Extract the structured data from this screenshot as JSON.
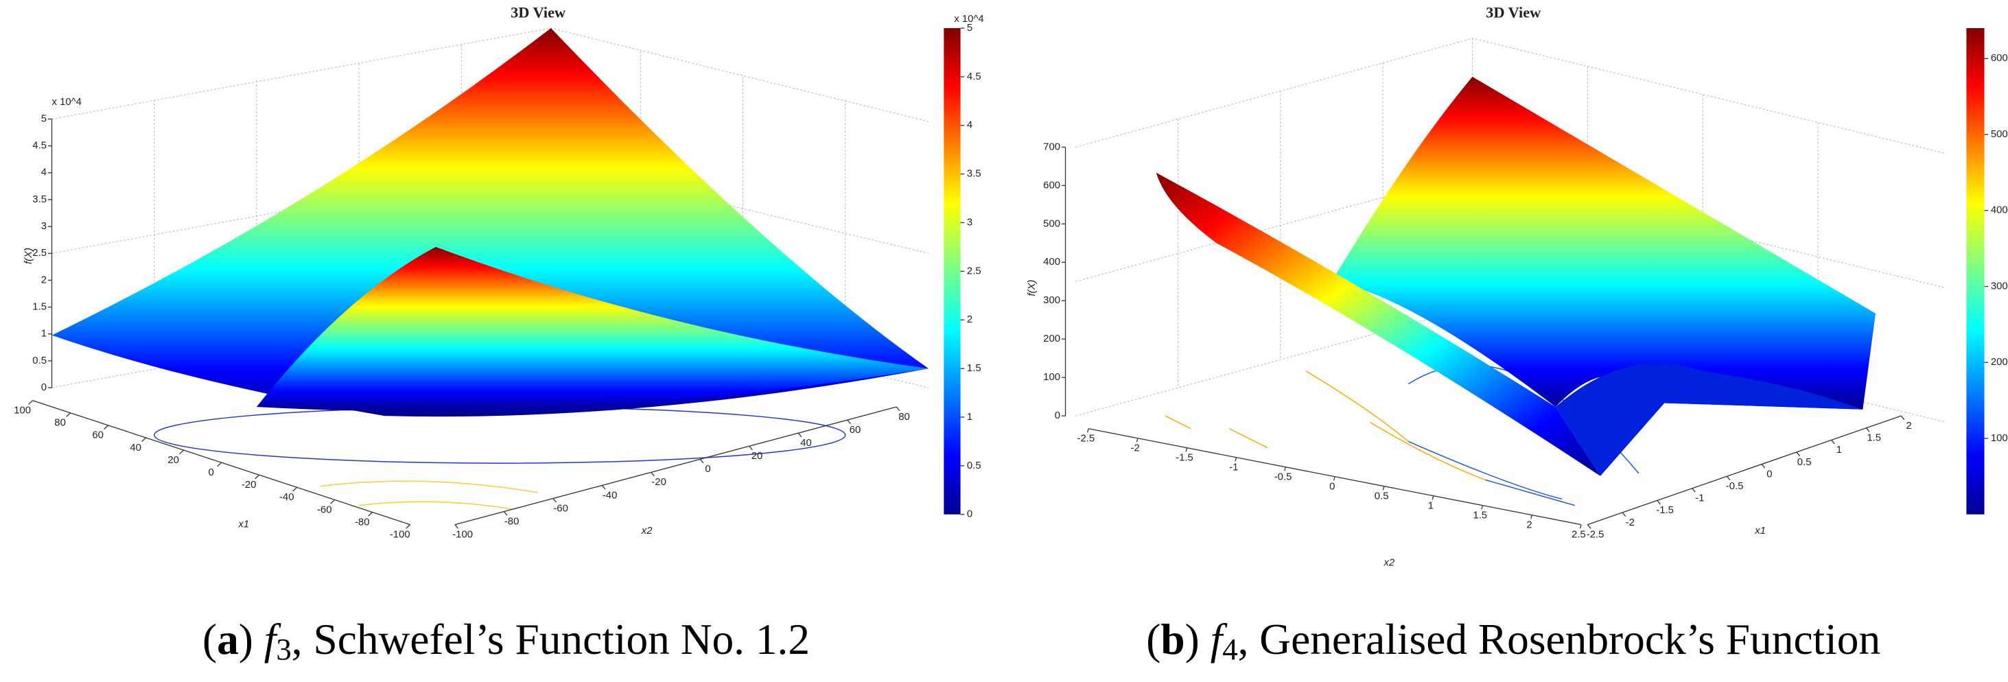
{
  "panels": [
    {
      "title": "3D View",
      "z_label": "f(X)",
      "z_exponent": "x 10^4",
      "zlim": [
        0,
        5
      ],
      "zticks": [
        0,
        0.5,
        1,
        1.5,
        2,
        2.5,
        3,
        3.5,
        4,
        4.5,
        5
      ],
      "clim": [
        0,
        5
      ],
      "cticks": [
        0,
        0.5,
        1,
        1.5,
        2,
        2.5,
        3,
        3.5,
        4,
        4.5,
        5
      ],
      "c_exponent": "x 10^4",
      "x1_label": "x1",
      "x1ticks": [
        100,
        80,
        60,
        40,
        20,
        0,
        -20,
        -40,
        -60,
        -80,
        -100
      ],
      "x2_label": "x2",
      "x2ticks": [
        -100,
        -80,
        -60,
        -40,
        -20,
        0,
        20,
        40,
        60,
        80
      ],
      "caption": {
        "label": "a",
        "func": "f",
        "sub": "3",
        "text": ", Schwefel’s Function No. 1.2"
      }
    },
    {
      "title": "3D View",
      "z_label": "f(X)",
      "zlim": [
        0,
        700
      ],
      "zticks": [
        0,
        100,
        200,
        300,
        400,
        500,
        600,
        700
      ],
      "clim": [
        0,
        640
      ],
      "cticks": [
        100,
        200,
        300,
        400,
        500,
        600
      ],
      "x2_label": "x2",
      "x2ticks": [
        -2.5,
        -2,
        -1.5,
        -1,
        -0.5,
        0,
        0.5,
        1,
        1.5,
        2,
        2.5
      ],
      "x1_label": "x1",
      "x1ticks": [
        -2.5,
        -2,
        -1.5,
        -1,
        -0.5,
        0,
        0.5,
        1,
        1.5,
        2
      ],
      "caption": {
        "label": "b",
        "func": "f",
        "sub": "4",
        "text": ", Generalised Rosenbrock’s Function"
      }
    }
  ]
}
